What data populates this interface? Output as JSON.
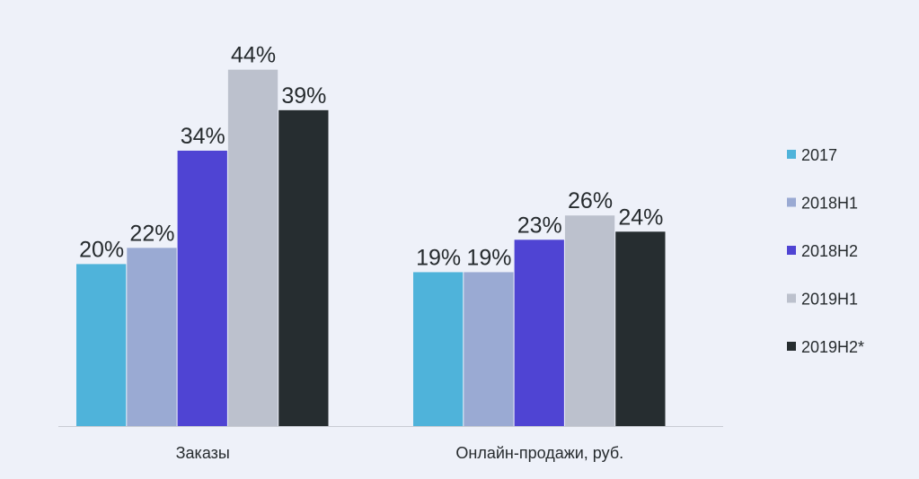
{
  "chart_data": {
    "type": "bar",
    "title": "",
    "xlabel": "",
    "ylabel": "",
    "ylim": [
      0,
      44
    ],
    "grid": false,
    "legend_position": "right",
    "categories": [
      "Заказы",
      "Онлайн-продажи, руб."
    ],
    "series": [
      {
        "name": "2017",
        "color": "#4fb3da",
        "values": [
          20,
          19
        ],
        "labels": [
          "20%",
          "19%"
        ]
      },
      {
        "name": "2018H1",
        "color": "#9aaad3",
        "values": [
          22,
          19
        ],
        "labels": [
          "22%",
          "19%"
        ]
      },
      {
        "name": "2018H2",
        "color": "#4f44d3",
        "values": [
          34,
          23
        ],
        "labels": [
          "34%",
          "23%"
        ]
      },
      {
        "name": "2019H1",
        "color": "#bcc1cd",
        "values": [
          44,
          26
        ],
        "labels": [
          "44%",
          "26%"
        ]
      },
      {
        "name": "2019H2*",
        "color": "#262d30",
        "values": [
          39,
          24
        ],
        "labels": [
          "39%",
          "24%"
        ]
      }
    ],
    "bold_labels": [
      "0.3"
    ]
  }
}
